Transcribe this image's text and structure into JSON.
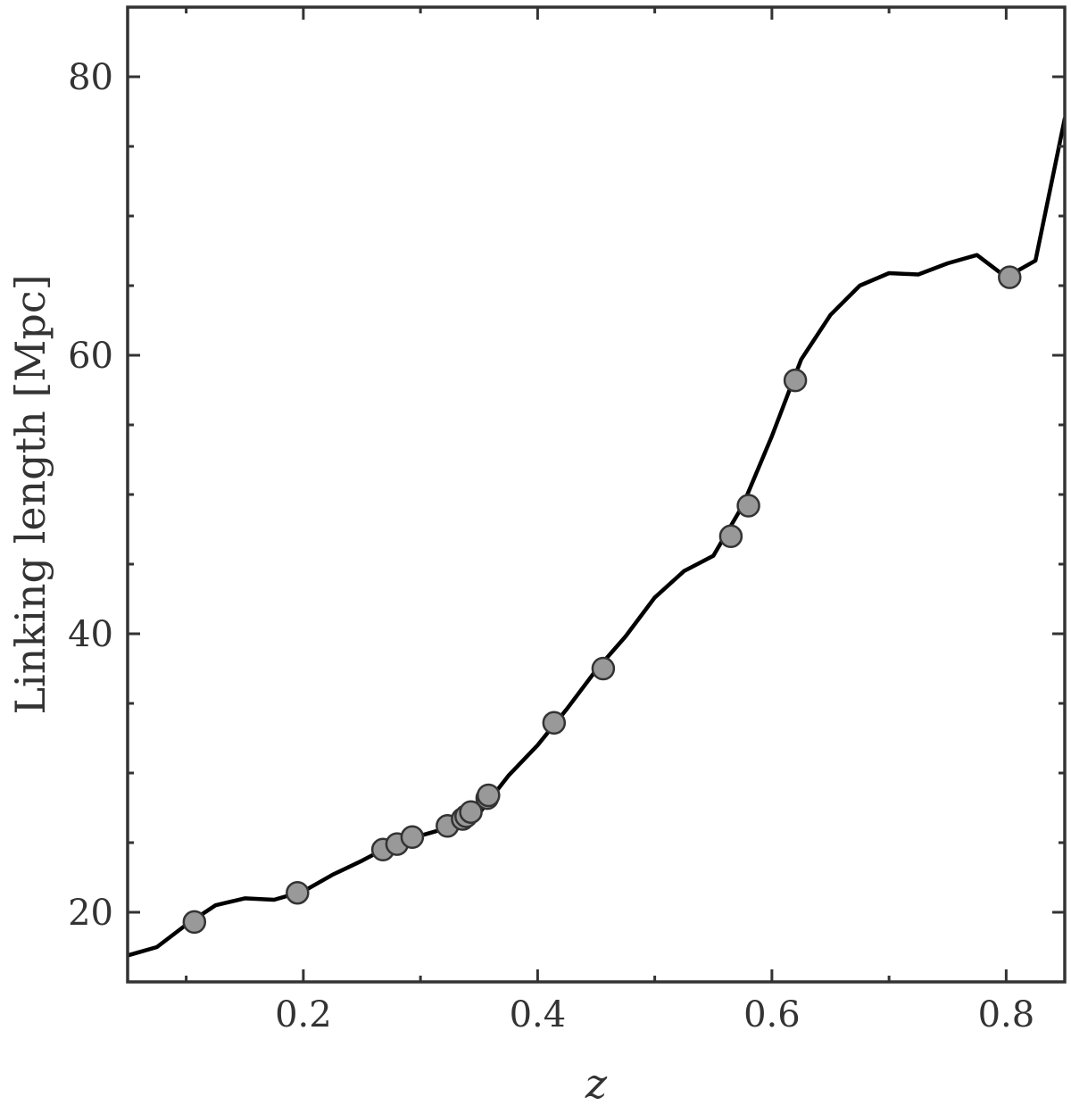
{
  "chart_data": {
    "type": "line",
    "xlabel": "z",
    "ylabel": "Linking length [Mpc]",
    "xlim": [
      0.05,
      0.85
    ],
    "ylim": [
      15,
      85
    ],
    "x_ticks": [
      0.2,
      0.4,
      0.6,
      0.8
    ],
    "x_tick_labels": [
      "0.2",
      "0.4",
      "0.6",
      "0.8"
    ],
    "x_minor_ticks": [
      0.1,
      0.3,
      0.5,
      0.7
    ],
    "y_ticks": [
      20,
      40,
      60,
      80
    ],
    "y_tick_labels": [
      "20",
      "40",
      "60",
      "80"
    ],
    "y_minor_ticks": [
      25,
      30,
      35,
      45,
      50,
      55,
      65,
      70,
      75
    ],
    "grid": false,
    "legend": "none",
    "series": [
      {
        "style": "line",
        "color": "#000000",
        "x": [
          0.05,
          0.075,
          0.1,
          0.125,
          0.15,
          0.175,
          0.2,
          0.225,
          0.25,
          0.275,
          0.3,
          0.325,
          0.35,
          0.375,
          0.4,
          0.425,
          0.45,
          0.475,
          0.5,
          0.525,
          0.55,
          0.575,
          0.6,
          0.625,
          0.65,
          0.675,
          0.7,
          0.725,
          0.75,
          0.775,
          0.8,
          0.825,
          0.85
        ],
        "y": [
          16.9,
          17.5,
          19.1,
          20.5,
          21.0,
          20.9,
          21.5,
          22.7,
          23.7,
          24.8,
          25.5,
          26.1,
          27.1,
          29.8,
          32.0,
          34.6,
          37.4,
          39.8,
          42.6,
          44.5,
          45.6,
          49.2,
          54.2,
          59.7,
          62.9,
          65.0,
          65.9,
          65.8,
          66.6,
          67.2,
          65.6,
          66.8,
          77.0
        ]
      },
      {
        "style": "markers",
        "color": "#999999",
        "edge_color": "#333333",
        "x": [
          0.107,
          0.195,
          0.268,
          0.28,
          0.293,
          0.323,
          0.336,
          0.339,
          0.343,
          0.357,
          0.358,
          0.414,
          0.456,
          0.565,
          0.58,
          0.62,
          0.803
        ],
        "y": [
          19.3,
          21.4,
          24.5,
          24.9,
          25.4,
          26.2,
          26.7,
          26.9,
          27.2,
          28.2,
          28.4,
          33.6,
          37.5,
          47.0,
          49.2,
          58.2,
          65.6
        ]
      }
    ]
  }
}
